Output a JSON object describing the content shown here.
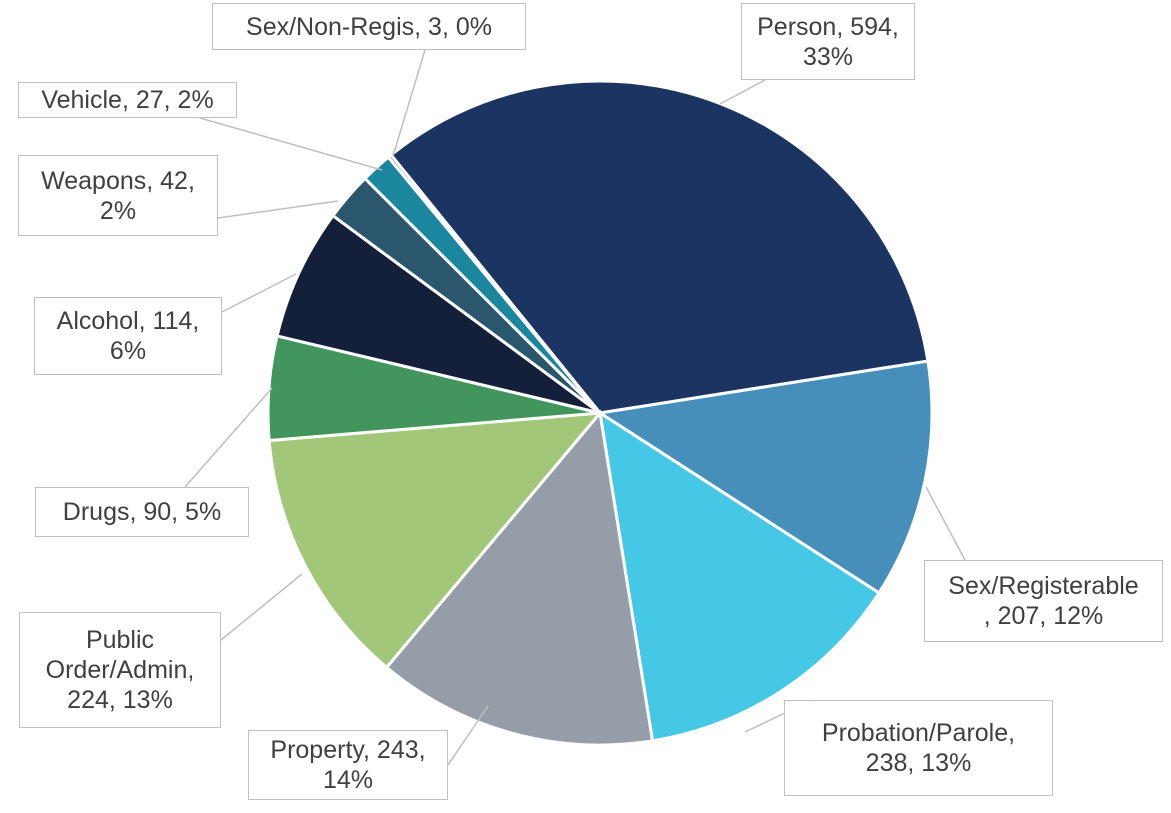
{
  "chart_data": {
    "type": "pie",
    "values": [
      594,
      207,
      238,
      243,
      224,
      90,
      114,
      42,
      27,
      3
    ],
    "value_labels": [
      "Person, 594,\n33%",
      "Sex/Registerable\n, 207, 12%",
      "Probation/Parole,\n238, 13%",
      "Property, 243,\n14%",
      "Public\nOrder/Admin,\n224, 13%",
      "Drugs, 90, 5%",
      "Alcohol, 114,\n6%",
      "Weapons, 42,\n2%",
      "Vehicle, 27, 2%",
      "Sex/Non-Regis, 3, 0%"
    ],
    "colors": [
      "#1c3461",
      "#468fba",
      "#45c8e6",
      "#959ea8",
      "#a2c778",
      "#42965d",
      "#141f3a",
      "#2a566e",
      "#1b879e",
      "#3f7fa8"
    ]
  }
}
